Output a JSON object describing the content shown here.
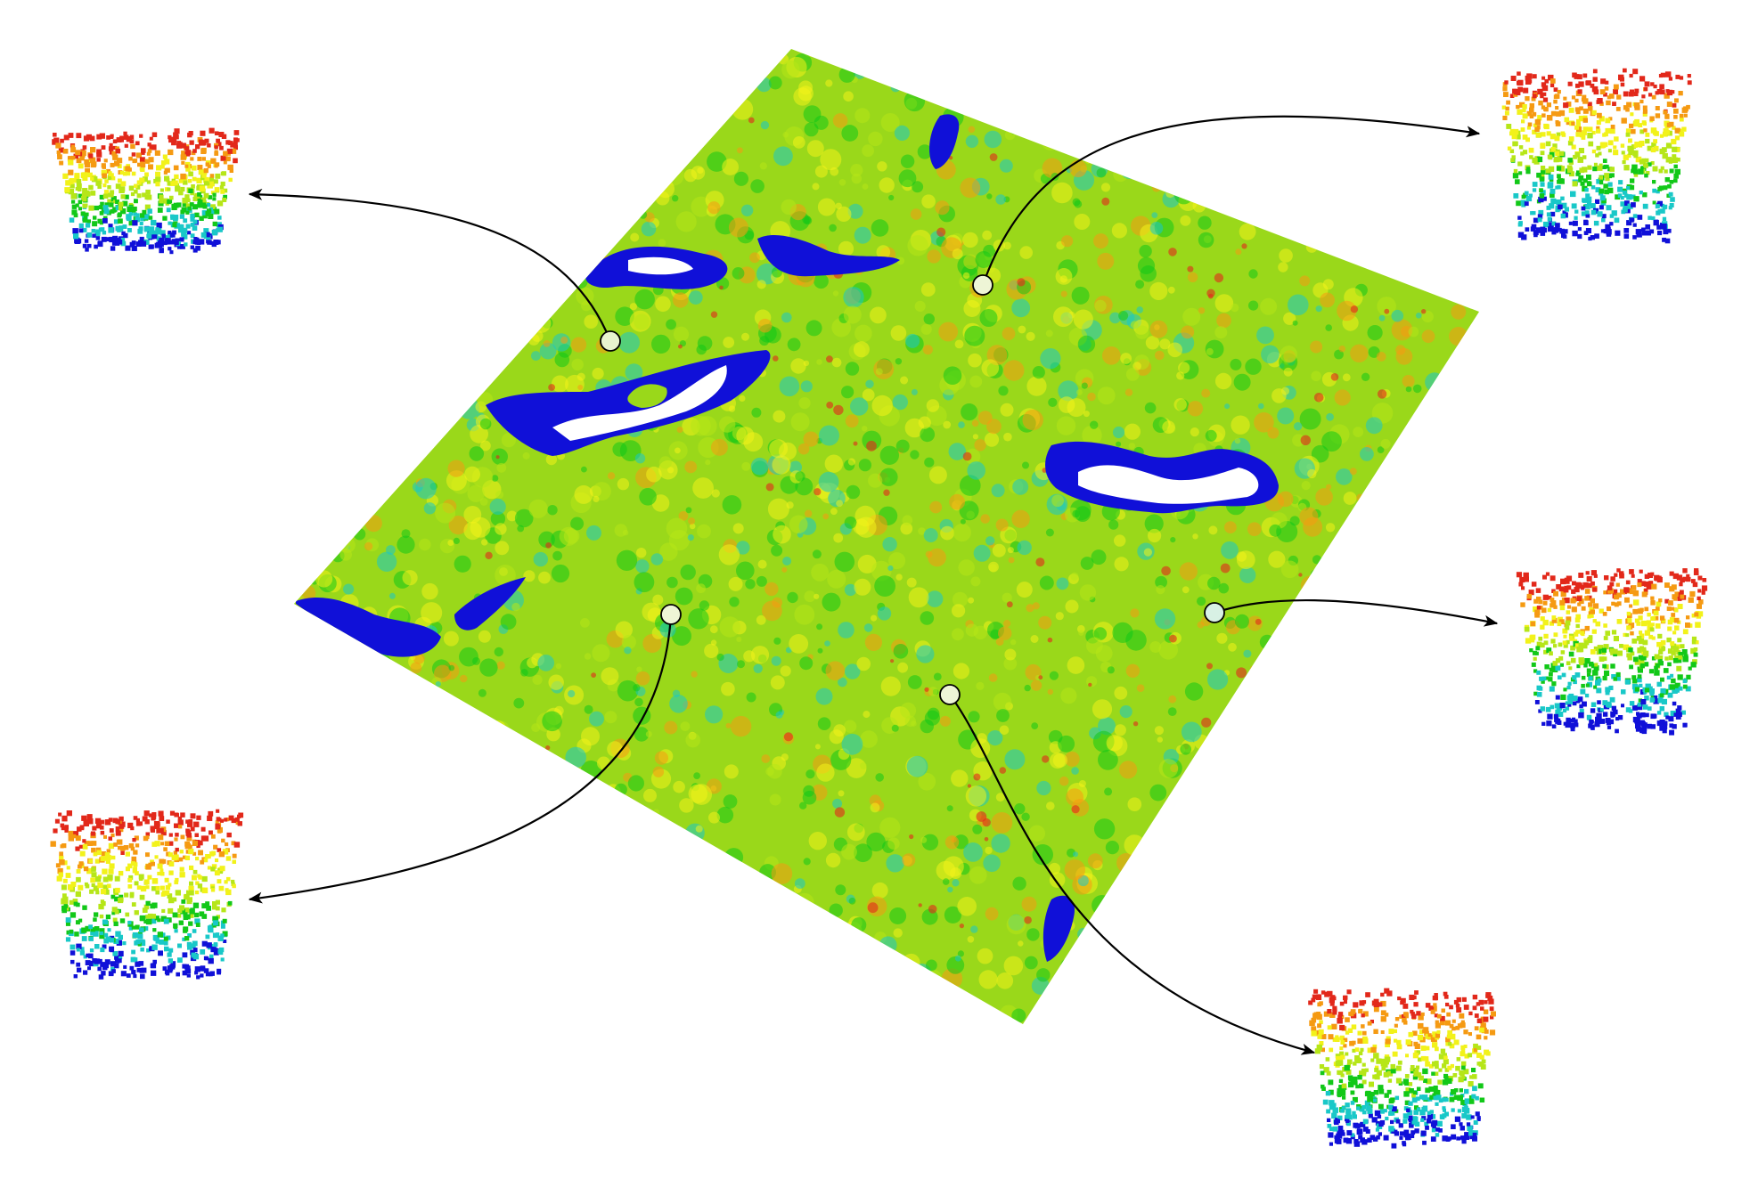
{
  "figure": {
    "background": "#ffffff",
    "palette": {
      "low": "#1010d8",
      "cyan": "#19c8c8",
      "mid_green": "#12c818",
      "yellow_green": "#b6e618",
      "yellow": "#f2f21a",
      "orange": "#f59a12",
      "high": "#e2281a",
      "void": "#ffffff"
    },
    "arrow_color": "#000000",
    "marker_fill": "#eaf6d0",
    "icons": [
      "terrain-tile-icon",
      "sample-plot-icon",
      "connector-arrow-icon",
      "sample-marker-icon"
    ]
  }
}
